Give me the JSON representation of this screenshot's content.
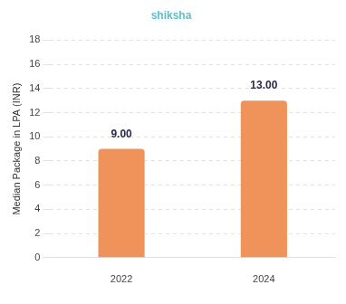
{
  "chart_data": {
    "type": "bar",
    "title": "shiksha",
    "ylabel": "Median Package in LPA (INR)",
    "categories": [
      "2022",
      "2024"
    ],
    "values": [
      9,
      13
    ],
    "value_labels": [
      "9.00",
      "13.00"
    ],
    "color": "#f0935a",
    "data_labels": true,
    "ylim": [
      0,
      18
    ],
    "yticks": [
      0,
      2,
      4,
      6,
      8,
      10,
      12,
      14,
      16,
      18
    ],
    "grid": true
  }
}
